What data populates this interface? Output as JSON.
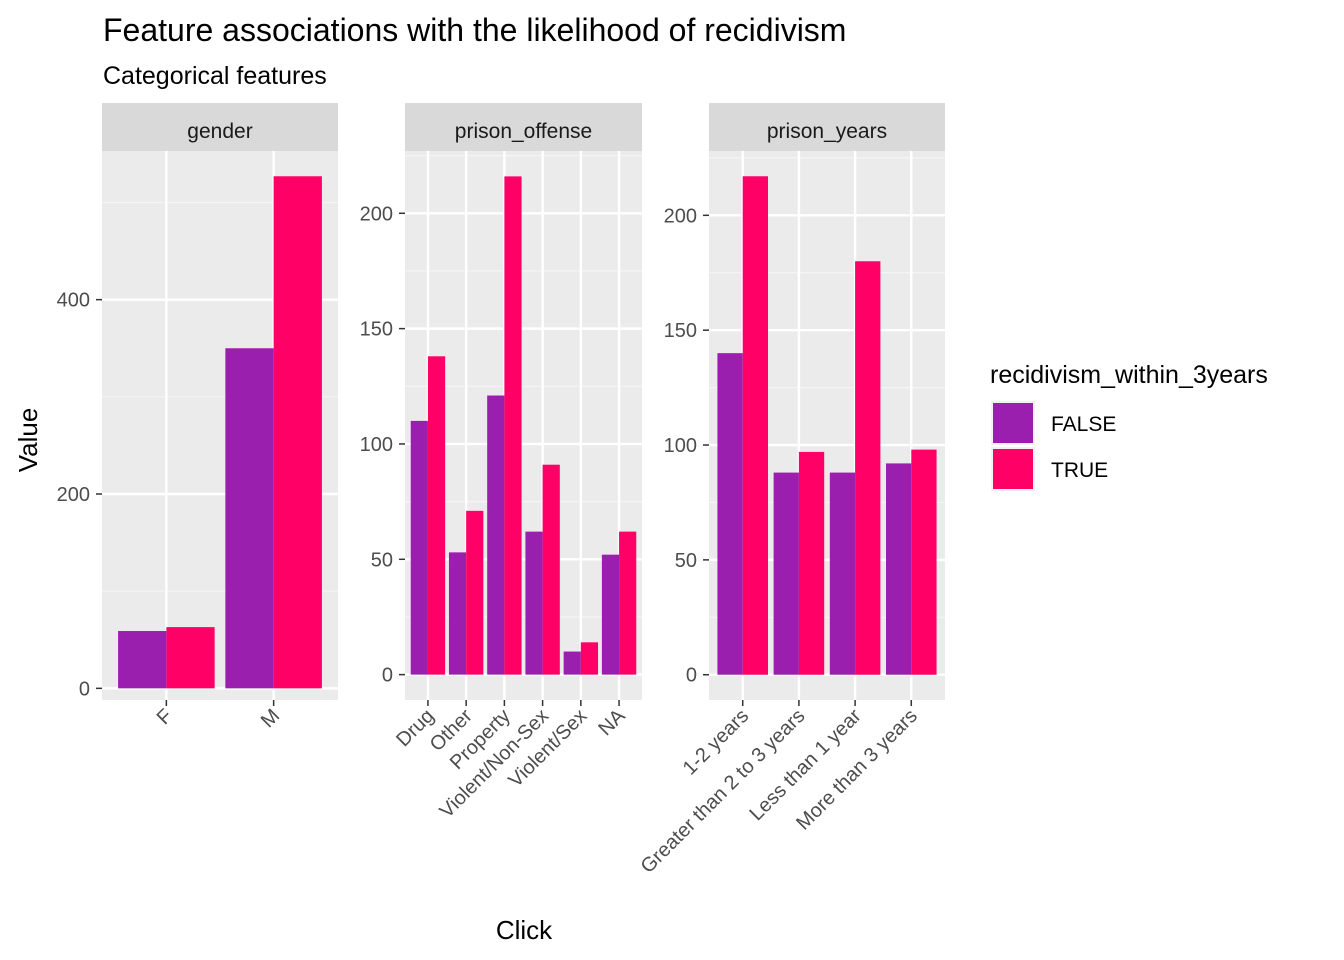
{
  "chart_data": {
    "type": "bar",
    "title": "Feature associations with the likelihood of recidivism",
    "subtitle": "Categorical features",
    "xlabel": "Click",
    "ylabel": "Value",
    "legend": {
      "title": "recidivism_within_3years",
      "position": "right",
      "entries": [
        {
          "label": "FALSE",
          "color": "#9B1FAE"
        },
        {
          "label": "TRUE",
          "color": "#FF0066"
        }
      ]
    },
    "grid": true,
    "facets": [
      {
        "name": "gender",
        "categories": [
          "F",
          "M"
        ],
        "ylim": [
          -12,
          553
        ],
        "yticks": [
          0,
          200,
          400
        ],
        "series": [
          {
            "name": "FALSE",
            "values": [
              59,
              350
            ]
          },
          {
            "name": "TRUE",
            "values": [
              63,
              527
            ]
          }
        ]
      },
      {
        "name": "prison_offense",
        "categories": [
          "Drug",
          "Other",
          "Property",
          "Violent/Non-Sex",
          "Violent/Sex",
          "NA"
        ],
        "ylim": [
          -11,
          227
        ],
        "yticks": [
          0,
          50,
          100,
          150,
          200
        ],
        "series": [
          {
            "name": "FALSE",
            "values": [
              110,
              53,
              121,
              62,
              10,
              52
            ]
          },
          {
            "name": "TRUE",
            "values": [
              138,
              71,
              216,
              91,
              14,
              62
            ]
          }
        ]
      },
      {
        "name": "prison_years",
        "categories": [
          "1-2 years",
          "Greater than 2 to 3 years",
          "Less than 1 year",
          "More than 3 years"
        ],
        "ylim": [
          -11,
          228
        ],
        "yticks": [
          0,
          50,
          100,
          150,
          200
        ],
        "series": [
          {
            "name": "FALSE",
            "values": [
              140,
              88,
              88,
              92
            ]
          },
          {
            "name": "TRUE",
            "values": [
              217,
              97,
              180,
              98
            ]
          }
        ]
      }
    ]
  }
}
